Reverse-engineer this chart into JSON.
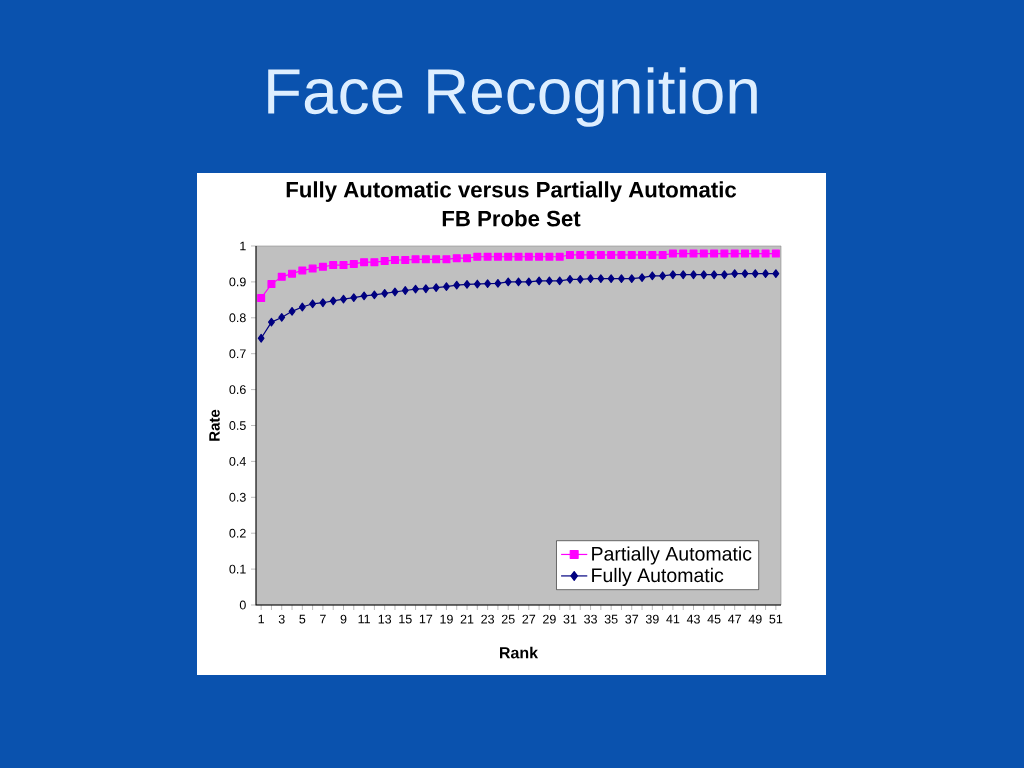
{
  "chart_data": {
    "type": "line",
    "title": "Face Recognition",
    "subtitle": "Fully Automatic versus Partially Automatic FB Probe Set",
    "xlabel": "Rank",
    "ylabel": "Rate",
    "categories": [
      "1",
      null,
      "3",
      null,
      "5",
      null,
      "7",
      null,
      "9",
      null,
      "11",
      null,
      "13",
      null,
      "15",
      null,
      "17",
      null,
      "19",
      null,
      "21",
      null,
      "23",
      null,
      "25",
      null,
      "27",
      null,
      "29",
      null,
      "31",
      null,
      "33",
      null,
      "35",
      null,
      "37",
      null,
      "39",
      null,
      "41",
      null,
      "43",
      null,
      "45",
      null,
      "47",
      null,
      "49",
      null,
      "51"
    ],
    "series": [
      {
        "name": "Partially Automatic",
        "color": "#ff00ff",
        "marker": "square",
        "values": [
          0.855,
          0.894,
          0.914,
          0.923,
          0.932,
          0.937,
          0.942,
          0.947,
          0.947,
          0.95,
          0.955,
          0.955,
          0.958,
          0.961,
          0.961,
          0.963,
          0.963,
          0.963,
          0.963,
          0.966,
          0.966,
          0.97,
          0.97,
          0.97,
          0.97,
          0.97,
          0.97,
          0.97,
          0.97,
          0.97,
          0.975,
          0.975,
          0.975,
          0.975,
          0.975,
          0.975,
          0.975,
          0.975,
          0.975,
          0.975,
          0.979,
          0.979,
          0.979,
          0.979,
          0.979,
          0.979,
          0.979,
          0.979,
          0.979,
          0.979,
          0.979
        ]
      },
      {
        "name": "Fully Automatic",
        "color": "#000080",
        "marker": "diamond",
        "values": [
          0.743,
          0.788,
          0.801,
          0.818,
          0.83,
          0.839,
          0.842,
          0.847,
          0.852,
          0.856,
          0.861,
          0.864,
          0.868,
          0.872,
          0.876,
          0.88,
          0.881,
          0.884,
          0.887,
          0.891,
          0.893,
          0.894,
          0.895,
          0.896,
          0.9,
          0.9,
          0.9,
          0.903,
          0.903,
          0.903,
          0.907,
          0.907,
          0.909,
          0.909,
          0.909,
          0.909,
          0.909,
          0.912,
          0.917,
          0.917,
          0.92,
          0.92,
          0.92,
          0.92,
          0.92,
          0.92,
          0.923,
          0.923,
          0.923,
          0.923,
          0.923
        ]
      }
    ],
    "ylim": [
      0,
      1
    ],
    "yticks": [
      0,
      0.1,
      0.2,
      0.3,
      0.4,
      0.5,
      0.6,
      0.7,
      0.8,
      0.9,
      1
    ],
    "legend": "bottom right",
    "line_style": "solid"
  }
}
